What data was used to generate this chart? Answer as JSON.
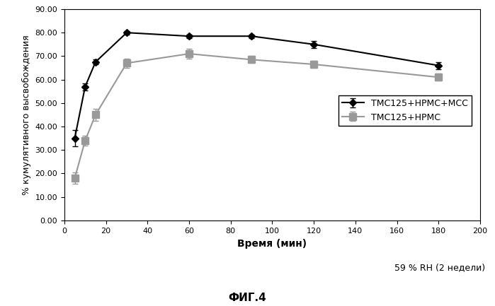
{
  "series1_label": "TMC125+HPMC+MCC",
  "series2_label": "TMC125+HPMC",
  "series1_x": [
    5,
    10,
    15,
    30,
    60,
    90,
    120,
    180
  ],
  "series1_y": [
    35.0,
    57.0,
    67.5,
    80.0,
    78.5,
    78.5,
    75.0,
    66.0
  ],
  "series1_yerr": [
    3.5,
    1.5,
    1.0,
    0.8,
    0.8,
    0.8,
    1.5,
    1.5
  ],
  "series2_x": [
    5,
    10,
    15,
    30,
    60,
    90,
    120,
    180
  ],
  "series2_y": [
    18.0,
    34.0,
    45.0,
    67.0,
    71.0,
    68.5,
    66.5,
    61.0
  ],
  "series2_yerr": [
    2.5,
    2.0,
    2.5,
    2.0,
    2.0,
    1.5,
    1.5,
    1.5
  ],
  "xlabel": "Время (мин)",
  "ylabel": "% кумулятивного высвобождения",
  "title_bottom": "ФИГ.4",
  "annotation": "59 % RH (2 недели)",
  "ylim": [
    0.0,
    90.0
  ],
  "xlim": [
    0,
    200
  ],
  "yticks": [
    0.0,
    10.0,
    20.0,
    30.0,
    40.0,
    50.0,
    60.0,
    70.0,
    80.0,
    90.0
  ],
  "xticks": [
    0,
    20,
    40,
    60,
    80,
    100,
    120,
    140,
    160,
    180,
    200
  ],
  "series1_color": "#000000",
  "series2_color": "#999999",
  "bg_color": "#ffffff",
  "marker1": "D",
  "marker2": "s"
}
